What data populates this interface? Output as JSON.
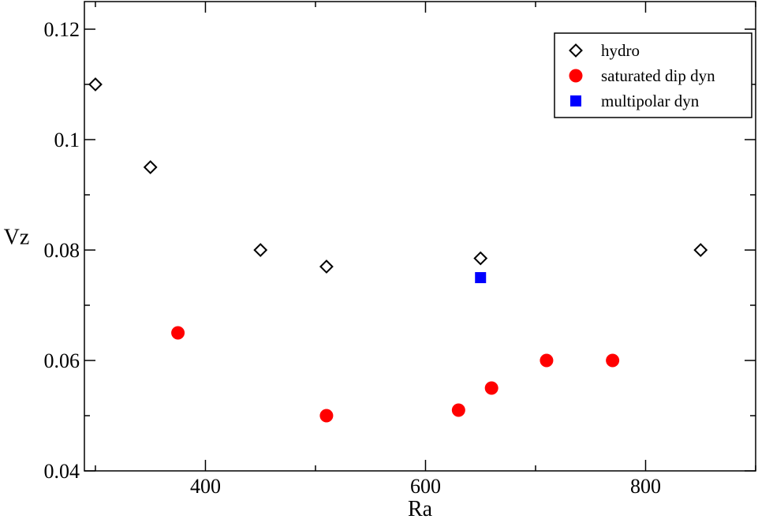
{
  "chart_data": {
    "type": "scatter",
    "xlabel": "Ra",
    "ylabel": "Vz",
    "xlim": [
      290,
      900
    ],
    "ylim": [
      0.04,
      0.125
    ],
    "x_ticks": [
      400,
      600,
      800
    ],
    "x_tick_labels": [
      "400",
      "600",
      "800"
    ],
    "y_ticks": [
      0.04,
      0.06,
      0.08,
      0.1,
      0.12
    ],
    "y_tick_labels": [
      "0.04",
      "0.06",
      "0.08",
      "0.1",
      "0.12"
    ],
    "grid": false,
    "legend_position": "top-right",
    "series": [
      {
        "name": "hydro",
        "marker": "diamond-open",
        "color": "#000000",
        "points": [
          [
            300,
            0.11
          ],
          [
            350,
            0.095
          ],
          [
            450,
            0.08
          ],
          [
            510,
            0.077
          ],
          [
            650,
            0.0785
          ],
          [
            850,
            0.08
          ]
        ]
      },
      {
        "name": "saturated dip dyn",
        "marker": "circle-filled",
        "color": "#ff0000",
        "points": [
          [
            375,
            0.065
          ],
          [
            510,
            0.05
          ],
          [
            630,
            0.051
          ],
          [
            660,
            0.055
          ],
          [
            710,
            0.06
          ],
          [
            770,
            0.06
          ]
        ]
      },
      {
        "name": "multipolar dyn",
        "marker": "square-filled",
        "color": "#0000ff",
        "points": [
          [
            650,
            0.075
          ]
        ]
      }
    ]
  }
}
